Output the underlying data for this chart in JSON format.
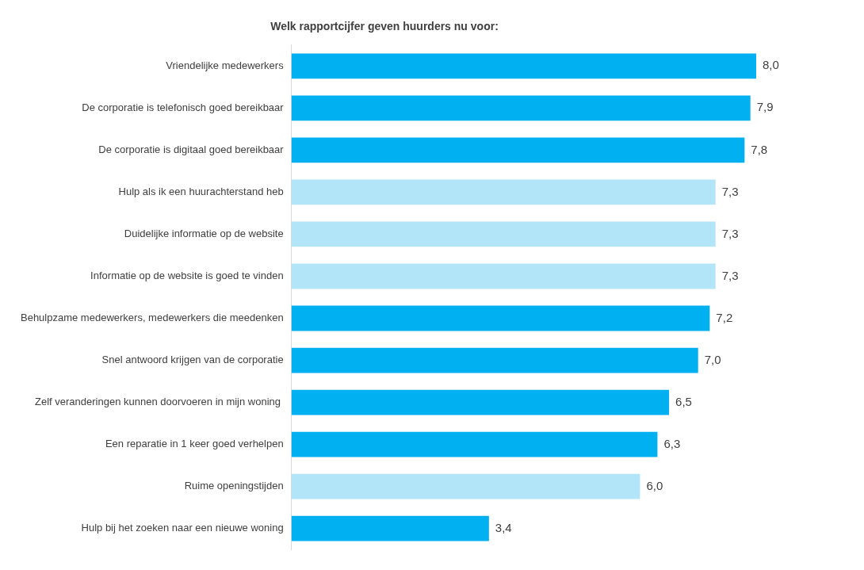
{
  "chart_data": {
    "type": "bar",
    "orientation": "horizontal",
    "title": "Welk rapportcijfer geven huurders nu voor:",
    "categories": [
      "Vriendelijke medewerkers",
      "De corporatie is telefonisch goed bereikbaar",
      "De corporatie is digitaal goed bereikbaar",
      "Hulp als ik een huurachterstand heb",
      "Duidelijke informatie op de website",
      "Informatie op de website is goed te vinden",
      "Behulpzame medewerkers, medewerkers die meedenken",
      "Snel antwoord krijgen van de corporatie",
      "Zelf veranderingen kunnen doorvoeren in mijn woning ",
      "Een reparatie in 1 keer goed verhelpen",
      "Ruime openingstijden",
      "Hulp bij het zoeken naar een nieuwe woning"
    ],
    "values": [
      8.0,
      7.9,
      7.8,
      7.3,
      7.3,
      7.3,
      7.2,
      7.0,
      6.5,
      6.3,
      6.0,
      3.4
    ],
    "value_labels": [
      "8,0",
      "7,9",
      "7,8",
      "7,3",
      "7,3",
      "7,3",
      "7,2",
      "7,0",
      "6,5",
      "6,3",
      "6,0",
      "3,4"
    ],
    "colors": [
      "#00b0f0",
      "#00b0f0",
      "#00b0f0",
      "#b3e5f8",
      "#b3e5f8",
      "#b3e5f8",
      "#00b0f0",
      "#00b0f0",
      "#00b0f0",
      "#00b0f0",
      "#b3e5f8",
      "#00b0f0"
    ],
    "grid": false,
    "legend": false
  }
}
